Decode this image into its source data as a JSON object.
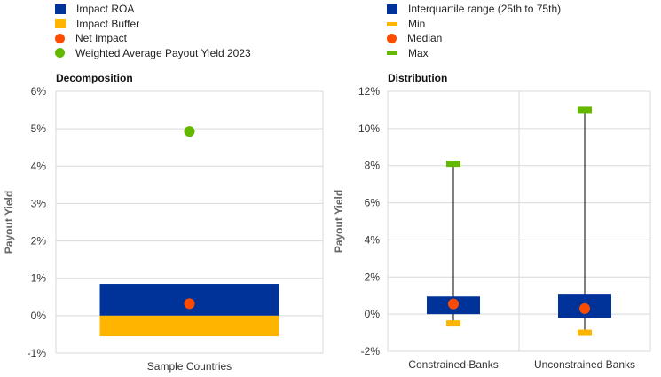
{
  "legend_left": [
    {
      "label": "Impact ROA",
      "shape": "square",
      "color": "#003399"
    },
    {
      "label": "Impact Buffer",
      "shape": "square",
      "color": "#FFB400"
    },
    {
      "label": "Net Impact",
      "shape": "dot",
      "color": "#FF4B00"
    },
    {
      "label": "Weighted Average Payout Yield 2023",
      "shape": "dot",
      "color": "#65B800"
    }
  ],
  "legend_right": [
    {
      "label": "Interquartile range (25th to 75th)",
      "shape": "square",
      "color": "#003399"
    },
    {
      "label": "Min",
      "shape": "dash",
      "color": "#FFB400"
    },
    {
      "label": "Median",
      "shape": "dot",
      "color": "#FF4B00"
    },
    {
      "label": "Max",
      "shape": "dash",
      "color": "#65B800"
    }
  ],
  "chart_data": [
    {
      "type": "bar",
      "title": "Decomposition",
      "ylabel": "Payout Yield",
      "xlabel": "",
      "categories": [
        "Sample Countries"
      ],
      "ylim": [
        -1,
        6
      ],
      "yticks": [
        "-1%",
        "0%",
        "1%",
        "2%",
        "3%",
        "4%",
        "5%",
        "6%"
      ],
      "yticks_values": [
        -1,
        0,
        1,
        2,
        3,
        4,
        5,
        6
      ],
      "series": [
        {
          "name": "Impact ROA",
          "values": [
            0.85
          ],
          "color": "#003399"
        },
        {
          "name": "Impact Buffer",
          "values": [
            -0.55
          ],
          "color": "#FFB400"
        }
      ],
      "points": [
        {
          "name": "Net Impact",
          "values": [
            0.32
          ],
          "color": "#FF4B00"
        },
        {
          "name": "Weighted Average Payout Yield 2023",
          "values": [
            4.93
          ],
          "color": "#65B800"
        }
      ],
      "grid": true
    },
    {
      "type": "box",
      "title": "Distribution",
      "ylabel": "Payout Yield",
      "xlabel": "",
      "categories": [
        "Constrained Banks",
        "Unconstrained Banks"
      ],
      "ylim": [
        -2,
        12
      ],
      "yticks": [
        "-2%",
        "0%",
        "2%",
        "4%",
        "6%",
        "8%",
        "10%",
        "12%"
      ],
      "yticks_values": [
        -2,
        0,
        2,
        4,
        6,
        8,
        10,
        12
      ],
      "q1": [
        0.0,
        -0.2
      ],
      "q3": [
        0.95,
        1.1
      ],
      "median": [
        0.55,
        0.3
      ],
      "min": [
        -0.5,
        -1.0
      ],
      "max": [
        8.1,
        11.0
      ],
      "colors": {
        "iqr": "#003399",
        "min": "#FFB400",
        "median": "#FF4B00",
        "max": "#65B800"
      },
      "grid": true
    }
  ]
}
